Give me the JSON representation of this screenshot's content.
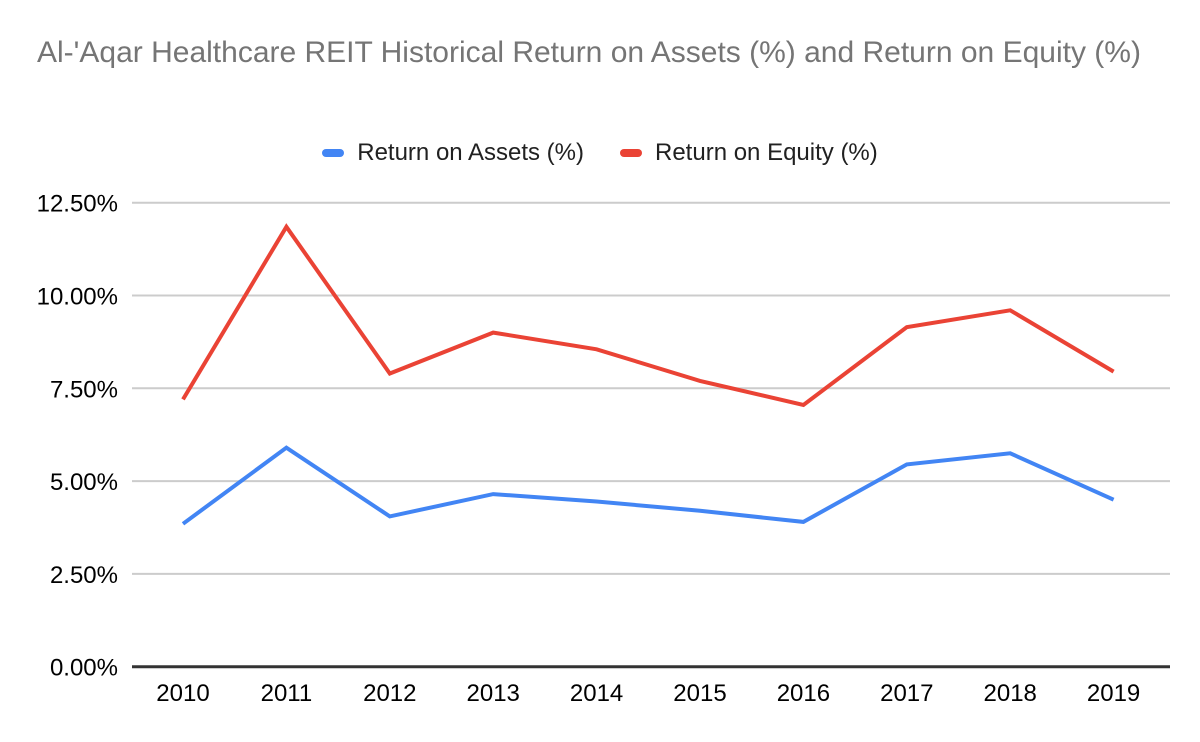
{
  "title": {
    "text": "Al-'Aqar Healthcare REIT Historical Return on Assets (%) and Return on Equity (%)",
    "color": "#757575"
  },
  "chart_data": {
    "type": "line",
    "title": "Al-'Aqar Healthcare REIT Historical Return on Assets (%) and Return on Equity (%)",
    "categories": [
      "2010",
      "2011",
      "2012",
      "2013",
      "2014",
      "2015",
      "2016",
      "2017",
      "2018",
      "2019"
    ],
    "series": [
      {
        "name": "Return on Assets (%)",
        "color": "#4285F4",
        "values": [
          3.85,
          5.9,
          4.05,
          4.65,
          4.45,
          4.2,
          3.9,
          5.45,
          5.75,
          4.5
        ]
      },
      {
        "name": "Return on Equity (%)",
        "color": "#EA4335",
        "values": [
          7.2,
          11.85,
          7.9,
          9.0,
          8.55,
          7.7,
          7.05,
          9.15,
          9.6,
          7.95
        ]
      }
    ],
    "xlabel": "",
    "ylabel": "",
    "ylim": [
      0,
      12.5
    ],
    "yticks": [
      {
        "value": 0,
        "label": "0.00%"
      },
      {
        "value": 2.5,
        "label": "2.50%"
      },
      {
        "value": 5,
        "label": "5.00%"
      },
      {
        "value": 7.5,
        "label": "7.50%"
      },
      {
        "value": 10,
        "label": "10.00%"
      },
      {
        "value": 12.5,
        "label": "12.50%"
      }
    ],
    "grid": true,
    "legend_position": "top",
    "colors": {
      "gridline": "#cccccc",
      "axis_line": "#333333",
      "tick_text": "#000000",
      "background": "#ffffff"
    }
  }
}
